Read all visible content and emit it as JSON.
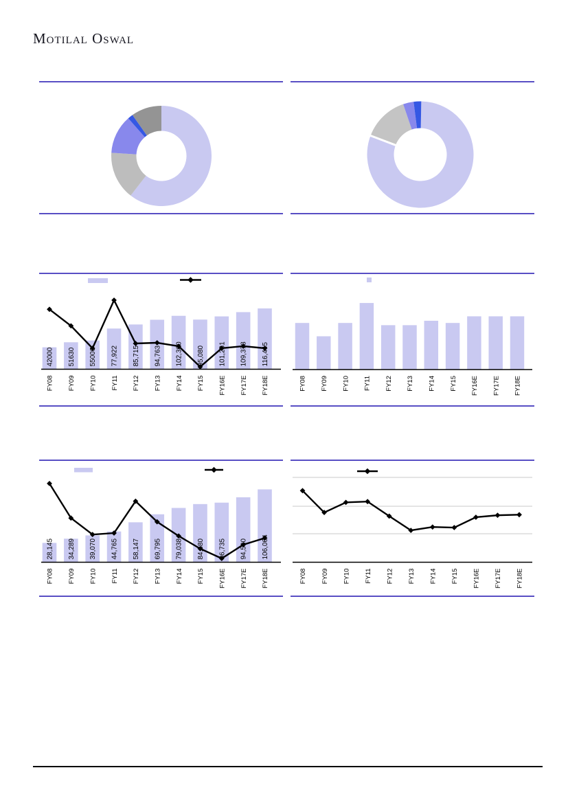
{
  "page": {
    "logo_text": "Motilal Oswal"
  },
  "colors": {
    "rule": "#584ec4",
    "bar": "#c9c9f1",
    "line": "#000000",
    "grid": "#c8c8c8",
    "axis": "#000000",
    "footer_rule": "#000000",
    "donut_lavender": "#c9c9f1",
    "donut_light_gray": "#bdbdbd",
    "donut_gray": "#c4c4c4",
    "donut_dark_gray": "#949494",
    "donut_purple": "#8888ec",
    "donut_blue": "#3558e4"
  },
  "chart_data": [
    {
      "id": "donut-top-left",
      "type": "pie",
      "donut": true,
      "legend_position": "none",
      "slices": [
        {
          "value": 60.5,
          "color": "#c9c9f1"
        },
        {
          "value": 15.5,
          "color": "#bdbdbd"
        },
        {
          "value": 12.5,
          "color": "#8888ec"
        },
        {
          "value": 1.7,
          "color": "#3558e4"
        },
        {
          "value": 9.8,
          "color": "#949494"
        }
      ]
    },
    {
      "id": "donut-top-right",
      "type": "pie",
      "donut": true,
      "legend_position": "none",
      "separator_after_slice_1": true,
      "slices": [
        {
          "value": 80.5,
          "color": "#c9c9f1"
        },
        {
          "value": 14.0,
          "color": "#c4c4c4"
        },
        {
          "value": 3.2,
          "color": "#8888ec"
        },
        {
          "value": 2.3,
          "color": "#3558e4"
        }
      ]
    },
    {
      "id": "bar-line-middle-left",
      "type": "bar+line",
      "grid": false,
      "legend_position": "top",
      "categories": [
        "FY08",
        "FY09",
        "FY10",
        "FY11",
        "FY12",
        "FY13",
        "FY14",
        "FY15",
        "FY16E",
        "FY17E",
        "FY18E"
      ],
      "bar_labels": [
        "42000",
        "51630",
        "55000",
        "77,922",
        "85,715",
        "94,763",
        "102,300",
        "95,080",
        "101,231",
        "109,373",
        "116,445"
      ],
      "bar_values": [
        42000,
        51630,
        55000,
        77922,
        85715,
        94763,
        102300,
        95080,
        101231,
        109373,
        116445
      ],
      "line_values": [
        35,
        22.9,
        6.5,
        41.7,
        10,
        10.5,
        8,
        -7.1,
        6.5,
        8,
        6.5
      ]
    },
    {
      "id": "bar-middle-right",
      "type": "bar",
      "grid": false,
      "legend_position": "top",
      "categories": [
        "FY08",
        "FY09",
        "FY10",
        "FY11",
        "FY12",
        "FY13",
        "FY14",
        "FY15",
        "FY16E",
        "FY17E",
        "FY18E"
      ],
      "bar_values": [
        21,
        15,
        21,
        30,
        20,
        20,
        22,
        21,
        24,
        24,
        24
      ]
    },
    {
      "id": "bar-line-bottom-left",
      "type": "bar+line",
      "grid": false,
      "legend_position": "top",
      "categories": [
        "FY08",
        "FY09",
        "FY10",
        "FY11",
        "FY12",
        "FY13",
        "FY14",
        "FY15",
        "FY16E",
        "FY17E",
        "FY18E"
      ],
      "bar_labels": [
        "28,145",
        "34,289",
        "39,070",
        "44,765",
        "58,147",
        "69,795",
        "79,038",
        "84,680",
        "86,735",
        "94,560",
        "106,064"
      ],
      "bar_values": [
        28145,
        34289,
        39070,
        44765,
        58147,
        69795,
        79038,
        84680,
        86735,
        94560,
        106064
      ],
      "line_values": [
        38.4,
        21.8,
        13.9,
        14.6,
        29.9,
        20,
        13.2,
        7.1,
        2.4,
        9,
        12.2
      ]
    },
    {
      "id": "line-bottom-right",
      "type": "line",
      "grid": true,
      "legend_position": "top",
      "categories": [
        "FY08",
        "FY09",
        "FY10",
        "FY11",
        "FY12",
        "FY13",
        "FY14",
        "FY15",
        "FY16E",
        "FY17E",
        "FY18E"
      ],
      "line_values": [
        3.54,
        2.76,
        3.12,
        3.15,
        2.63,
        2.12,
        2.24,
        2.22,
        2.59,
        2.66,
        2.68
      ]
    }
  ]
}
